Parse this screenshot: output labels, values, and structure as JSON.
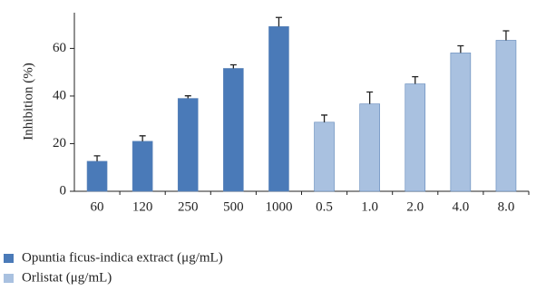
{
  "chart_data": {
    "type": "bar",
    "categories": [
      "60",
      "120",
      "250",
      "500",
      "1000",
      "0.5",
      "1.0",
      "2.0",
      "4.0",
      "8.0"
    ],
    "series": [
      {
        "name": "Opuntia ficus-indica extract (μg/mL)",
        "color": "#4a7ab8",
        "values": [
          12.6,
          21,
          39,
          51.6,
          69.2,
          null,
          null,
          null,
          null,
          null
        ],
        "errors": [
          2.3,
          2.3,
          1.1,
          1.5,
          3.8,
          null,
          null,
          null,
          null,
          null
        ]
      },
      {
        "name": "Orlistat (μg/mL)",
        "color": "#a9c1e0",
        "values": [
          null,
          null,
          null,
          null,
          null,
          29,
          36.7,
          45.1,
          58.1,
          63.4
        ],
        "errors": [
          null,
          null,
          null,
          null,
          null,
          3,
          5,
          3,
          3,
          4
        ]
      }
    ],
    "y_label": "Inhibition (%)",
    "ylim": [
      0,
      75
    ],
    "yticks": [
      0,
      20,
      40,
      60
    ],
    "legend": "bottom-left"
  }
}
